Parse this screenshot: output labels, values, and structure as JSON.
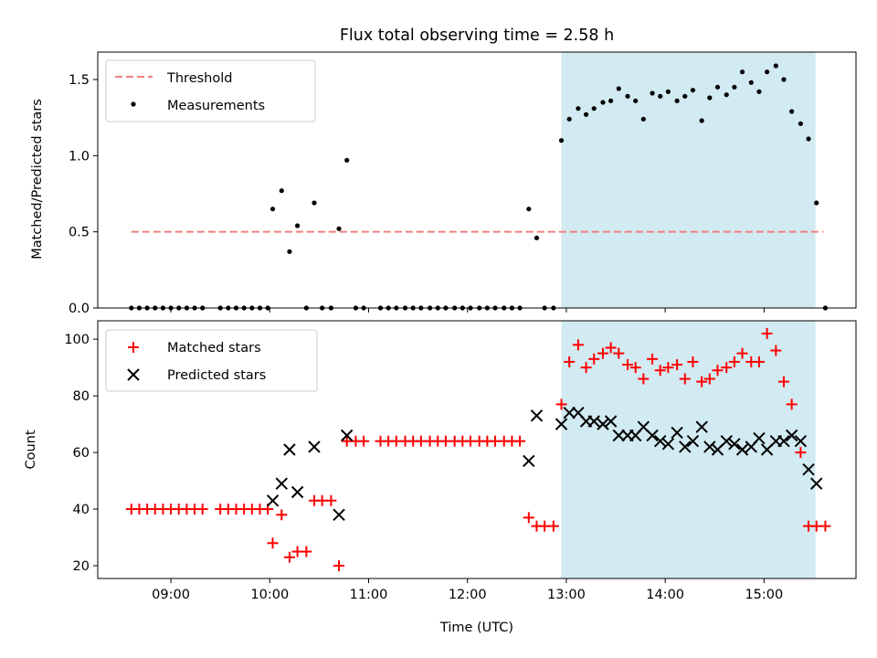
{
  "title": "Flux total observing time = 2.58 h",
  "x_axis": {
    "label": "Time (UTC)",
    "ticks": [
      {
        "t": 9,
        "label": "09:00"
      },
      {
        "t": 10,
        "label": "10:00"
      },
      {
        "t": 11,
        "label": "11:00"
      },
      {
        "t": 12,
        "label": "12:00"
      },
      {
        "t": 13,
        "label": "13:00"
      },
      {
        "t": 14,
        "label": "14:00"
      },
      {
        "t": 15,
        "label": "15:00"
      }
    ]
  },
  "chart_data": [
    {
      "type": "scatter",
      "ylabel": "Matched/Predicted stars",
      "xlim_hours": [
        8.26,
        15.93
      ],
      "ylim": [
        0,
        1.68
      ],
      "yticks": [
        0.0,
        0.5,
        1.0,
        1.5
      ],
      "ytick_labels": [
        "0.0",
        "0.5",
        "1.0",
        "1.5"
      ],
      "shaded_interval_hours": [
        12.95,
        15.52
      ],
      "shade_color": "#add8e6",
      "legend": {
        "placement": "upper-left",
        "entries": [
          "Threshold",
          "Measurements"
        ]
      },
      "threshold": {
        "name": "Threshold",
        "y": 0.5,
        "x_range_hours": [
          8.6,
          15.6
        ],
        "color": "#f08080",
        "style": "dashed"
      },
      "series": [
        {
          "name": "Measurements",
          "color": "#000000",
          "marker": "dot",
          "x": [
            8.6,
            8.68,
            8.76,
            8.84,
            8.92,
            9.0,
            9.08,
            9.16,
            9.24,
            9.32,
            9.5,
            9.58,
            9.66,
            9.74,
            9.82,
            9.9,
            9.98,
            10.03,
            10.12,
            10.2,
            10.28,
            10.37,
            10.45,
            10.53,
            10.62,
            10.7,
            10.78,
            10.87,
            10.95,
            11.12,
            11.2,
            11.28,
            11.37,
            11.45,
            11.53,
            11.62,
            11.7,
            11.78,
            11.87,
            11.95,
            12.03,
            12.12,
            12.2,
            12.28,
            12.37,
            12.45,
            12.53,
            12.62,
            12.7,
            12.78,
            12.87,
            12.95,
            13.03,
            13.12,
            13.2,
            13.28,
            13.37,
            13.45,
            13.53,
            13.62,
            13.7,
            13.78,
            13.87,
            13.95,
            14.03,
            14.12,
            14.2,
            14.28,
            14.37,
            14.45,
            14.53,
            14.62,
            14.7,
            14.78,
            14.87,
            14.95,
            15.03,
            15.12,
            15.2,
            15.28,
            15.37,
            15.45,
            15.53,
            15.62
          ],
          "y": [
            0,
            0,
            0,
            0,
            0,
            0,
            0,
            0,
            0,
            0,
            0,
            0,
            0,
            0,
            0,
            0,
            0,
            0.65,
            0.77,
            0.37,
            0.54,
            0,
            0.69,
            0,
            0,
            0.52,
            0.97,
            0,
            0,
            0,
            0,
            0,
            0,
            0,
            0,
            0,
            0,
            0,
            0,
            0,
            0,
            0,
            0,
            0,
            0,
            0,
            0,
            0.65,
            0.46,
            0,
            0,
            1.1,
            1.24,
            1.31,
            1.27,
            1.31,
            1.35,
            1.36,
            1.44,
            1.39,
            1.36,
            1.24,
            1.41,
            1.39,
            1.42,
            1.36,
            1.39,
            1.43,
            1.23,
            1.38,
            1.45,
            1.4,
            1.45,
            1.55,
            1.48,
            1.42,
            1.55,
            1.59,
            1.5,
            1.29,
            1.21,
            1.11,
            0.69,
            0
          ]
        }
      ]
    },
    {
      "type": "scatter",
      "ylabel": "Count",
      "xlabel": "Time (UTC)",
      "xlim_hours": [
        8.26,
        15.93
      ],
      "ylim": [
        15.5,
        106.5
      ],
      "yticks": [
        20,
        40,
        60,
        80,
        100
      ],
      "ytick_labels": [
        "20",
        "40",
        "60",
        "80",
        "100"
      ],
      "shaded_interval_hours": [
        12.95,
        15.52
      ],
      "shade_color": "#add8e6",
      "legend": {
        "placement": "upper-left",
        "entries": [
          "Matched stars",
          "Predicted stars"
        ]
      },
      "series": [
        {
          "name": "Matched stars",
          "color": "#ff0000",
          "marker": "plus",
          "x": [
            8.6,
            8.68,
            8.76,
            8.84,
            8.92,
            9.0,
            9.08,
            9.16,
            9.24,
            9.32,
            9.5,
            9.58,
            9.66,
            9.74,
            9.82,
            9.9,
            9.98,
            10.03,
            10.12,
            10.2,
            10.28,
            10.37,
            10.45,
            10.53,
            10.62,
            10.7,
            10.78,
            10.87,
            10.95,
            11.12,
            11.2,
            11.28,
            11.37,
            11.45,
            11.53,
            11.62,
            11.7,
            11.78,
            11.87,
            11.95,
            12.03,
            12.12,
            12.2,
            12.28,
            12.37,
            12.45,
            12.53,
            12.62,
            12.7,
            12.78,
            12.87,
            12.95,
            13.03,
            13.12,
            13.2,
            13.28,
            13.37,
            13.45,
            13.53,
            13.62,
            13.7,
            13.78,
            13.87,
            13.95,
            14.03,
            14.12,
            14.2,
            14.28,
            14.37,
            14.45,
            14.53,
            14.62,
            14.7,
            14.78,
            14.87,
            14.95,
            15.03,
            15.12,
            15.2,
            15.28,
            15.37,
            15.45,
            15.53,
            15.62
          ],
          "y": [
            40,
            40,
            40,
            40,
            40,
            40,
            40,
            40,
            40,
            40,
            40,
            40,
            40,
            40,
            40,
            40,
            40,
            28,
            38,
            23,
            25,
            25,
            43,
            43,
            43,
            20,
            64,
            64,
            64,
            64,
            64,
            64,
            64,
            64,
            64,
            64,
            64,
            64,
            64,
            64,
            64,
            64,
            64,
            64,
            64,
            64,
            64,
            37,
            34,
            34,
            34,
            77,
            92,
            98,
            90,
            93,
            95,
            97,
            95,
            91,
            90,
            86,
            93,
            89,
            90,
            91,
            86,
            92,
            85,
            86,
            89,
            90,
            92,
            95,
            92,
            92,
            102,
            96,
            85,
            77,
            60,
            34,
            34,
            34
          ]
        },
        {
          "name": "Predicted stars",
          "color": "#000000",
          "marker": "x",
          "x": [
            10.03,
            10.12,
            10.2,
            10.28,
            10.45,
            10.7,
            10.78,
            12.62,
            12.7,
            12.95,
            13.03,
            13.12,
            13.2,
            13.28,
            13.37,
            13.45,
            13.53,
            13.62,
            13.7,
            13.78,
            13.87,
            13.95,
            14.03,
            14.12,
            14.2,
            14.28,
            14.37,
            14.45,
            14.53,
            14.62,
            14.7,
            14.78,
            14.87,
            14.95,
            15.03,
            15.12,
            15.2,
            15.28,
            15.37,
            15.45,
            15.53
          ],
          "y": [
            43,
            49,
            61,
            46,
            62,
            38,
            66,
            57,
            73,
            70,
            74,
            74,
            71,
            71,
            70,
            71,
            66,
            66,
            66,
            69,
            66,
            64,
            63,
            67,
            62,
            64,
            69,
            62,
            61,
            64,
            63,
            61,
            62,
            65,
            61,
            64,
            64,
            66,
            64,
            54,
            49
          ]
        }
      ]
    }
  ]
}
